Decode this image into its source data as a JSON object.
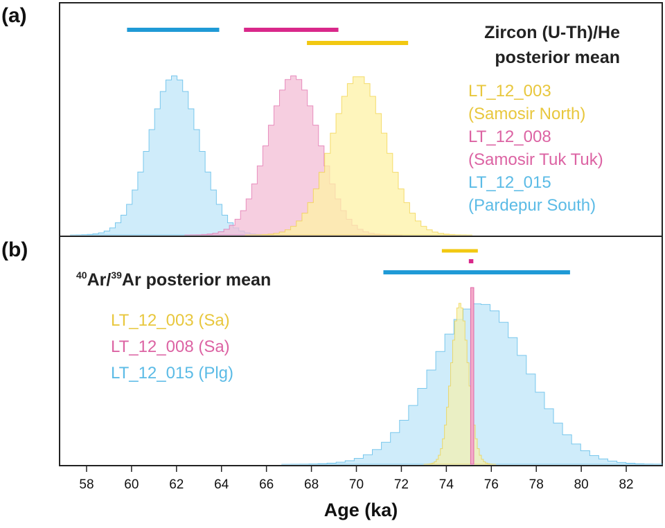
{
  "chart_data": [
    {
      "type": "histogram",
      "panel_label": "(a)",
      "title": [
        "Zircon (U-Th)/He",
        "posterior mean"
      ],
      "xlabel": "Age (ka)",
      "xlim": [
        56.8,
        83.6
      ],
      "xticks": [
        58,
        60,
        62,
        64,
        66,
        68,
        70,
        72,
        74,
        76,
        78,
        80,
        82
      ],
      "yaxis_visible": false,
      "legend_placement": "right",
      "series": [
        {
          "id": "LT_12_015",
          "legend": [
            "LT_12_015",
            "(Pardepur South)"
          ],
          "color": "#4ab3e6",
          "fill": "#bfe6f8",
          "dist": {
            "mean": 61.9,
            "sd": 1.1,
            "peak": 0.9
          },
          "interval": [
            59.8,
            63.9
          ]
        },
        {
          "id": "LT_12_008",
          "legend": [
            "LT_12_008",
            "(Samosir Tuk Tuk)"
          ],
          "color": "#e066a8",
          "fill": "#f3bed6",
          "dist": {
            "mean": 67.2,
            "sd": 1.15,
            "peak": 0.9
          },
          "interval": [
            65.0,
            69.2
          ]
        },
        {
          "id": "LT_12_003",
          "legend": [
            "LT_12_003",
            "(Samosir North)"
          ],
          "color": "#f0cf3c",
          "fill": "#fdf2a6",
          "dist": {
            "mean": 70.1,
            "sd": 1.2,
            "peak": 0.9
          },
          "interval": [
            67.8,
            72.3
          ]
        }
      ]
    },
    {
      "type": "histogram",
      "panel_label": "(b)",
      "title": {
        "sup1": "40",
        "part1": "Ar/",
        "sup2": "39",
        "part2": "Ar posterior mean"
      },
      "xlabel": "Age (ka)",
      "xlim": [
        56.8,
        83.6
      ],
      "xticks": [
        58,
        60,
        62,
        64,
        66,
        68,
        70,
        72,
        74,
        76,
        78,
        80,
        82
      ],
      "yaxis_visible": false,
      "legend_placement": "left",
      "series": [
        {
          "id": "LT_12_015",
          "legend": "LT_12_015 (Plg)",
          "color": "#4ab3e6",
          "fill": "#bfe6f8",
          "dist": {
            "mean": 75.5,
            "sd": 2.1,
            "peak": 0.9
          },
          "interval": [
            71.2,
            79.5
          ]
        },
        {
          "id": "LT_12_003",
          "legend": "LT_12_003 (Sa)",
          "color": "#f0cf3c",
          "fill": "#f3f0b2",
          "dist": {
            "mean": 74.6,
            "sd": 0.38,
            "peak": 0.9
          },
          "interval": [
            73.8,
            75.4
          ]
        },
        {
          "id": "LT_12_008",
          "legend": "LT_12_008 (Sa)",
          "color": "#e066a8",
          "fill": "#f3aac8",
          "dist": {
            "mean": 75.15,
            "sd": 0.08,
            "peak": 0.9
          },
          "interval": [
            75.0,
            75.2
          ]
        }
      ]
    }
  ]
}
